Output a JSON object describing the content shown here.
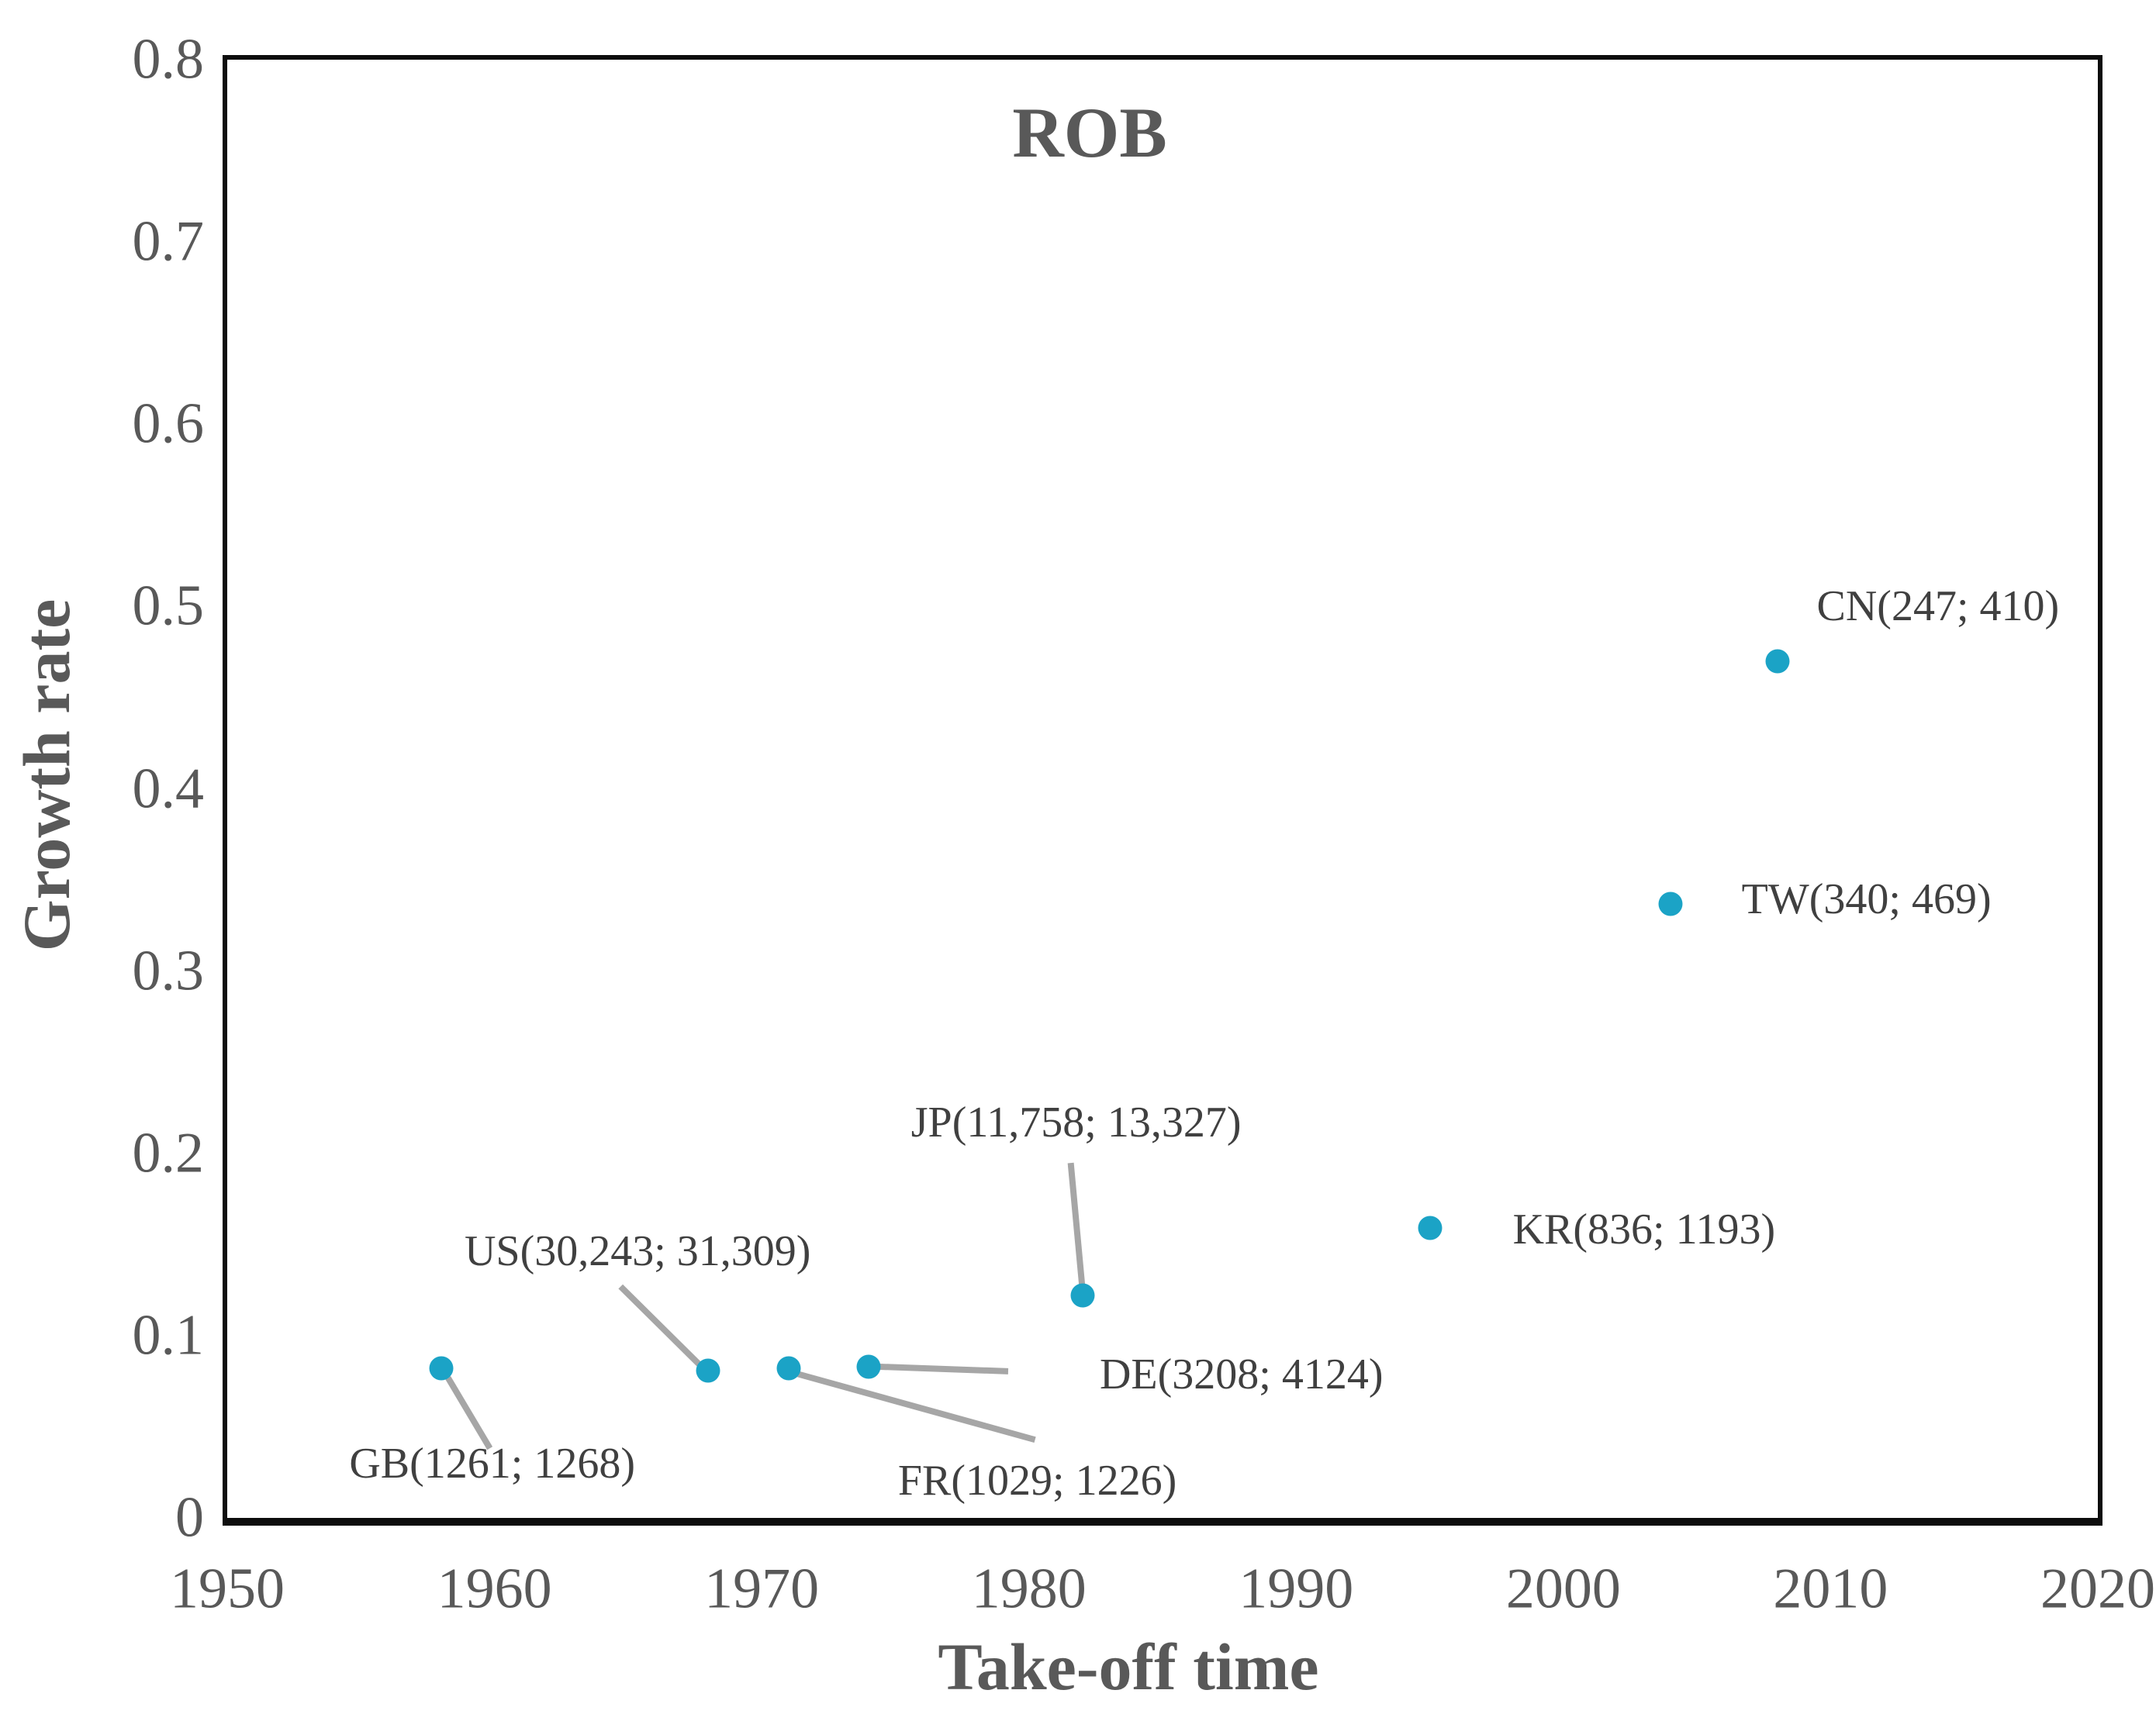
{
  "colors": {
    "point": "#1BA3C6",
    "leader_line": "#A6A6A6",
    "axis_line": "#0D0D0D",
    "tick_text": "#595959",
    "label_text": "#404040"
  },
  "chart_data": {
    "type": "scatter",
    "title": "ROB",
    "xlabel": "Take-off time",
    "ylabel": "Growth rate",
    "xlim": [
      1950,
      2020
    ],
    "ylim": [
      0,
      0.8
    ],
    "grid": false,
    "legend": "none",
    "x_ticks": [
      "1950",
      "1960",
      "1970",
      "1980",
      "1990",
      "2000",
      "2010",
      "2020"
    ],
    "y_ticks": [
      "0",
      "0.1",
      "0.2",
      "0.3",
      "0.4",
      "0.5",
      "0.6",
      "0.7",
      "0.8"
    ],
    "points": [
      {
        "code": "GB",
        "label": "GB(1261; 1268)",
        "takeoff_year": 1958,
        "growth_rate": 0.082,
        "label_values": [
          1261,
          1268
        ]
      },
      {
        "code": "US",
        "label": "US(30,243; 31,309)",
        "takeoff_year": 1968,
        "growth_rate": 0.081,
        "label_values": [
          30243,
          31309
        ]
      },
      {
        "code": "FR",
        "label": "FR(1029; 1226)",
        "takeoff_year": 1971,
        "growth_rate": 0.082,
        "label_values": [
          1029,
          1226
        ]
      },
      {
        "code": "DE",
        "label": "DE(3208; 4124)",
        "takeoff_year": 1974,
        "growth_rate": 0.083,
        "label_values": [
          3208,
          4124
        ]
      },
      {
        "code": "JP",
        "label": "JP(11,758; 13,327)",
        "takeoff_year": 1982,
        "growth_rate": 0.122,
        "label_values": [
          11758,
          13327
        ]
      },
      {
        "code": "KR",
        "label": "KR(836; 1193)",
        "takeoff_year": 1995,
        "growth_rate": 0.159,
        "label_values": [
          836,
          1193
        ]
      },
      {
        "code": "TW",
        "label": "TW(340; 469)",
        "takeoff_year": 2004,
        "growth_rate": 0.337,
        "label_values": [
          340,
          469
        ]
      },
      {
        "code": "CN",
        "label": "CN(247; 410)",
        "takeoff_year": 2008,
        "growth_rate": 0.47,
        "label_values": [
          247,
          410
        ]
      }
    ]
  }
}
